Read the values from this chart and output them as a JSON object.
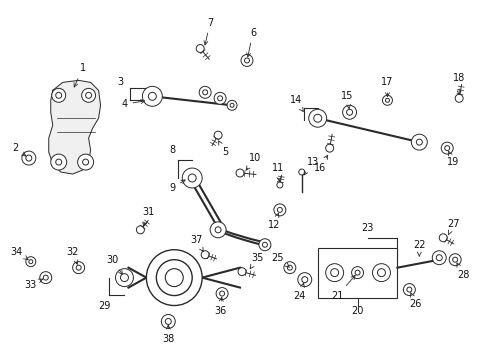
{
  "background_color": "#ffffff",
  "line_color": "#2a2a2a",
  "text_color": "#111111",
  "fig_width": 4.89,
  "fig_height": 3.6,
  "dpi": 100
}
